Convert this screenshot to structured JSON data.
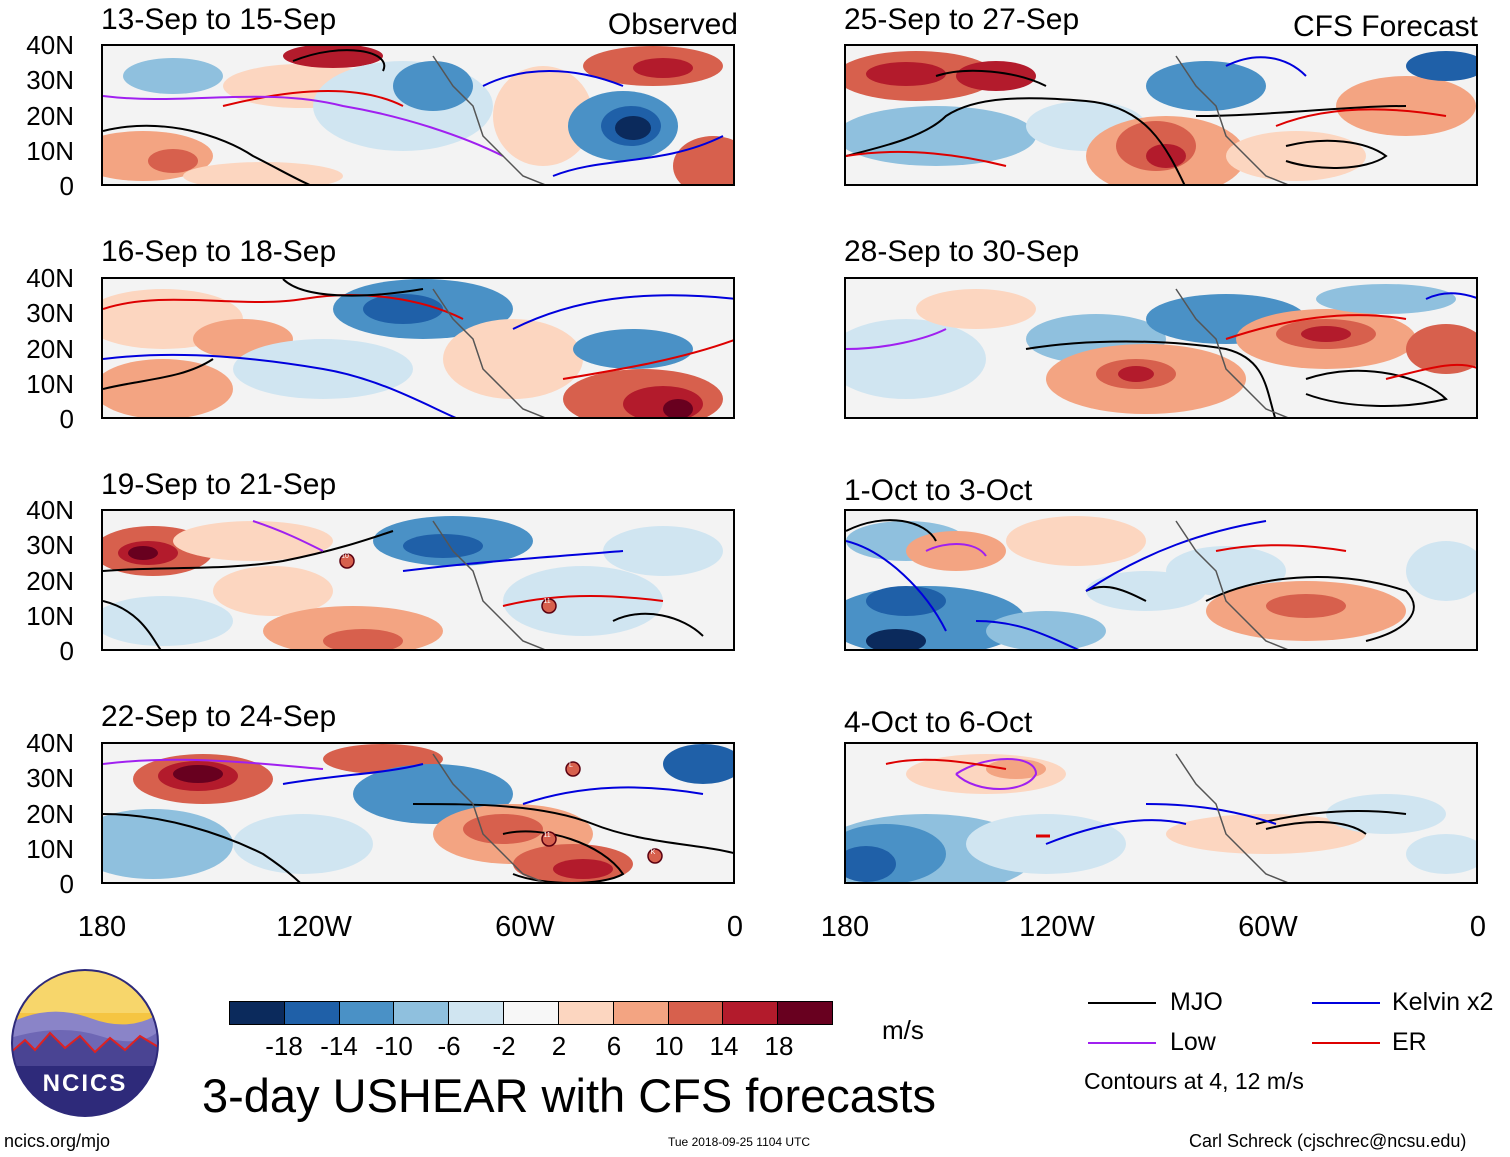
{
  "panels": [
    {
      "title": "13-Sep to 15-Sep",
      "corner": "Observed"
    },
    {
      "title": "16-Sep to 18-Sep",
      "corner": ""
    },
    {
      "title": "19-Sep to 21-Sep",
      "corner": ""
    },
    {
      "title": "22-Sep to 24-Sep",
      "corner": ""
    },
    {
      "title": "25-Sep to 27-Sep",
      "corner": "CFS Forecast"
    },
    {
      "title": "28-Sep to 30-Sep",
      "corner": ""
    },
    {
      "title": "1-Oct to 3-Oct",
      "corner": ""
    },
    {
      "title": "4-Oct to 6-Oct",
      "corner": ""
    }
  ],
  "lat_labels": [
    "40N",
    "30N",
    "20N",
    "10N",
    "0"
  ],
  "lon_labels": [
    "180",
    "120W",
    "60W",
    "0"
  ],
  "colorbar": {
    "colors": [
      "#0b2a5c",
      "#1f60a8",
      "#4a91c6",
      "#8fc0de",
      "#d0e5f1",
      "#f7f7f7",
      "#fcd6c0",
      "#f3a482",
      "#d7604d",
      "#b31b2c",
      "#68001f"
    ],
    "ticks": [
      "-18",
      "-14",
      "-10",
      "-6",
      "-2",
      "2",
      "6",
      "10",
      "14",
      "18"
    ],
    "units": "m/s"
  },
  "main_title": "3-day USHEAR with CFS forecasts",
  "legend": [
    {
      "label": "MJO",
      "color": "#000000"
    },
    {
      "label": "Kelvin x2",
      "color": "#0000dd"
    },
    {
      "label": "Low",
      "color": "#a020f0"
    },
    {
      "label": "ER",
      "color": "#dd0000"
    }
  ],
  "contour_note": "Contours at 4, 12 m/s",
  "footer": {
    "left": "ncics.org/mjo",
    "center": "Tue 2018-09-25 1104 UTC",
    "right": "Carl Schreck (cjschrec@ncsu.edu)"
  },
  "logo_text": "NCICS",
  "storm_markers": [
    {
      "panel": 2,
      "label": "10"
    },
    {
      "panel": 2,
      "label": "11"
    },
    {
      "panel": 3,
      "label": "L"
    },
    {
      "panel": 3,
      "label": "11"
    },
    {
      "panel": 3,
      "label": "K"
    }
  ]
}
